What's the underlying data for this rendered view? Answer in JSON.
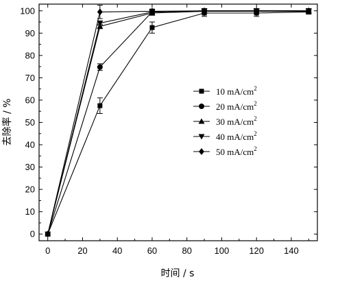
{
  "chart_data": {
    "type": "line",
    "xlabel": "时间 / s",
    "ylabel": "去除率 / %",
    "xlim": [
      -5,
      155
    ],
    "ylim": [
      -3,
      103
    ],
    "xticks": [
      0,
      20,
      40,
      60,
      80,
      100,
      120,
      140
    ],
    "yticks": [
      0,
      10,
      20,
      30,
      40,
      50,
      60,
      70,
      80,
      90,
      100
    ],
    "grid": false,
    "legend_position": "right-middle",
    "x": [
      0,
      30,
      60,
      90,
      120,
      150
    ],
    "series": [
      {
        "name": "10 mA/cm",
        "unit_sup": "2",
        "marker": "square",
        "values": [
          0,
          57.5,
          92.5,
          99.0,
          99.0,
          99.5
        ],
        "errors": [
          0,
          3.5,
          2.5,
          1.5,
          1.5,
          1.0
        ]
      },
      {
        "name": "20 mA/cm",
        "unit_sup": "2",
        "marker": "circle",
        "values": [
          0,
          74.8,
          99.5,
          99.8,
          99.8,
          99.8
        ],
        "errors": [
          0,
          1.5,
          1.0,
          1.0,
          1.0,
          1.0
        ]
      },
      {
        "name": "30 mA/cm",
        "unit_sup": "2",
        "marker": "triangle-up",
        "values": [
          0,
          93.0,
          99.0,
          99.8,
          100,
          100
        ],
        "errors": [
          0,
          1.0,
          1.0,
          1.0,
          1.0,
          1.0
        ]
      },
      {
        "name": "40 mA/cm",
        "unit_sup": "2",
        "marker": "triangle-down",
        "values": [
          0,
          94.5,
          99.5,
          100,
          100,
          100
        ],
        "errors": [
          0,
          1.0,
          1.0,
          1.0,
          1.0,
          1.0
        ]
      },
      {
        "name": "50 mA/cm",
        "unit_sup": "2",
        "marker": "diamond",
        "values": [
          0,
          99.5,
          99.8,
          100,
          100,
          100
        ],
        "errors": [
          0,
          3.0,
          1.0,
          1.0,
          1.0,
          1.0
        ]
      }
    ]
  }
}
